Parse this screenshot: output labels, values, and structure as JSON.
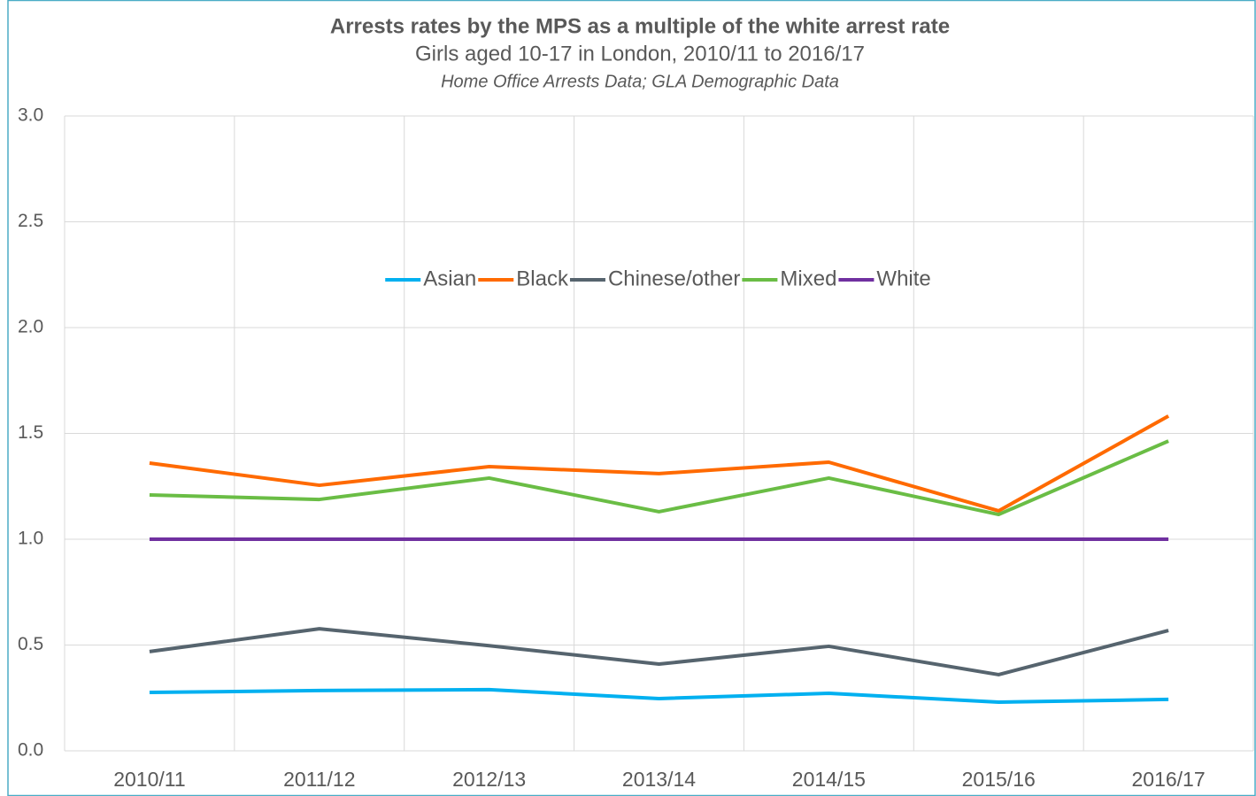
{
  "chart_data": {
    "type": "line",
    "title": "Arrests rates by the MPS as a multiple of the white arrest rate",
    "subtitle": "Girls aged 10-17 in London, 2010/11 to 2016/17",
    "source": "Home Office Arrests Data; GLA Demographic Data",
    "categories": [
      "2010/11",
      "2011/12",
      "2012/13",
      "2013/14",
      "2014/15",
      "2015/16",
      "2016/17"
    ],
    "series": [
      {
        "name": "Asian",
        "color": "#00b0f0",
        "values": [
          0.276,
          0.285,
          0.289,
          0.247,
          0.272,
          0.23,
          0.243
        ]
      },
      {
        "name": "Black",
        "color": "#ff6a00",
        "values": [
          1.36,
          1.255,
          1.343,
          1.31,
          1.364,
          1.134,
          1.582
        ]
      },
      {
        "name": "Chinese/other",
        "color": "#56646e",
        "values": [
          0.469,
          0.577,
          0.497,
          0.41,
          0.494,
          0.36,
          0.569
        ]
      },
      {
        "name": "Mixed",
        "color": "#6abd45",
        "values": [
          1.209,
          1.188,
          1.289,
          1.13,
          1.289,
          1.117,
          1.464
        ]
      },
      {
        "name": "White",
        "color": "#7030a0",
        "values": [
          1,
          1,
          1,
          1,
          1,
          1,
          1
        ]
      }
    ],
    "ylim": [
      0,
      3
    ],
    "yticks": [
      {
        "value": 0,
        "label": "0.0"
      },
      0.5,
      {
        "value": 1,
        "label": "1.0"
      },
      1.5,
      {
        "value": 2,
        "label": "2.0"
      },
      2.5,
      {
        "value": 3,
        "label": "3.0"
      }
    ],
    "grid": true,
    "legend": "top"
  }
}
